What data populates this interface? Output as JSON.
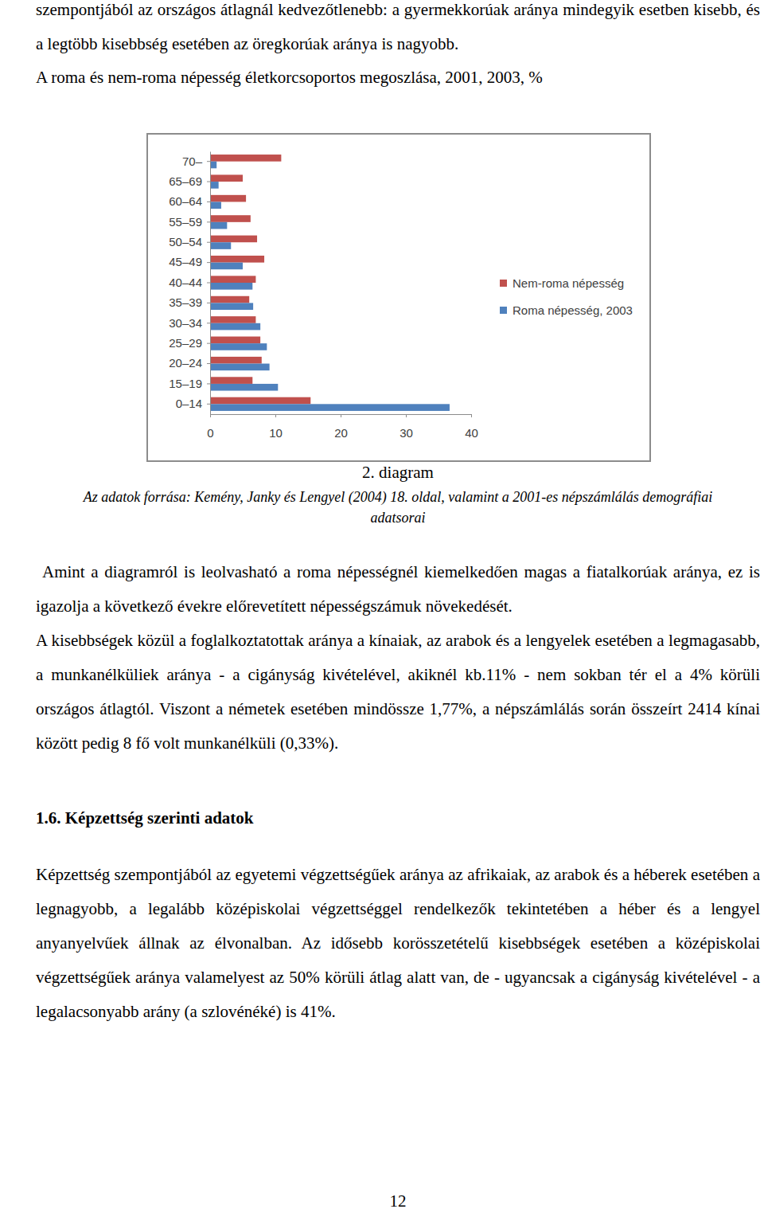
{
  "document": {
    "intro": "szempontjából az országos átlagnál kedvezőtlenebb: a gyermekkorúak aránya mindegyik esetben kisebb, és a legtöbb kisebbség esetében az öregkorúak aránya is nagyobb.",
    "figure": {
      "caption": "2. diagram",
      "source": "Az adatok forrása: Kemény, Janky és Lengyel (2004) 18. oldal, valamint a 2001-es népszámlálás demográfiai adatsorai"
    },
    "paragraphs_1": [
      "Amint a diagramról is leolvasható a roma népességnél kiemelkedően magas a fiatalkorúak aránya, ez is igazolja a következő évekre előrevetített népességszámuk növekedését.",
      "A kisebbségek közül a foglalkoztatottak aránya a kínaiak, az arabok és a lengyelek esetében a legmagasabb, a munkanélküliek aránya - a cigányság kivételével, akiknél kb.11% - nem sokban tér el a 4% körüli országos átlagtól. Viszont a németek esetében mindössze 1,77%, a népszámlálás során összeírt 2414 kínai között pedig 8 fő volt munkanélküli (0,33%)."
    ],
    "heading": "1.6. Képzettség szerinti adatok",
    "paragraphs_2": [
      "Képzettség szempontjából az egyetemi végzettségűek aránya az afrikaiak, az arabok és a héberek esetében a legnagyobb, a legalább középiskolai végzettséggel rendelkezők tekintetében a héber és a lengyel anyanyelvűek állnak az élvonalban. Az idősebb korösszetételű kisebbségek esetében a középiskolai végzettségűek aránya valamelyest az 50% körüli átlag alatt van, de - ugyancsak a cigányság kivételével - a legalacsonyabb arány (a szlovénéké) is 41%."
    ],
    "page_number": "12"
  },
  "chart_data": {
    "type": "bar",
    "title": "A roma és nem-roma népesség életkorcsoportos megoszlása, 2001, 2003, %",
    "orientation": "horizontal",
    "categories": [
      "0–14",
      "15–19",
      "20–24",
      "25–29",
      "30–34",
      "35–39",
      "40–44",
      "45–49",
      "50–54",
      "55–59",
      "60–64",
      "65–69",
      "70–"
    ],
    "series": [
      {
        "name": "Nem-roma népesség",
        "color": "#c0504d",
        "values": [
          15.4,
          6.5,
          7.9,
          7.7,
          7.0,
          6.0,
          7.0,
          8.3,
          7.2,
          6.2,
          5.5,
          5.0,
          10.9
        ]
      },
      {
        "name": "Roma népesség, 2003",
        "color": "#4f81bd",
        "values": [
          36.7,
          10.4,
          9.1,
          8.7,
          7.7,
          6.6,
          6.5,
          5.0,
          3.2,
          2.6,
          1.7,
          1.3,
          1.0
        ]
      }
    ],
    "xlim": [
      0,
      40
    ],
    "xticks": [
      0,
      10,
      20,
      30,
      40
    ],
    "grid": false,
    "legend": "right"
  }
}
